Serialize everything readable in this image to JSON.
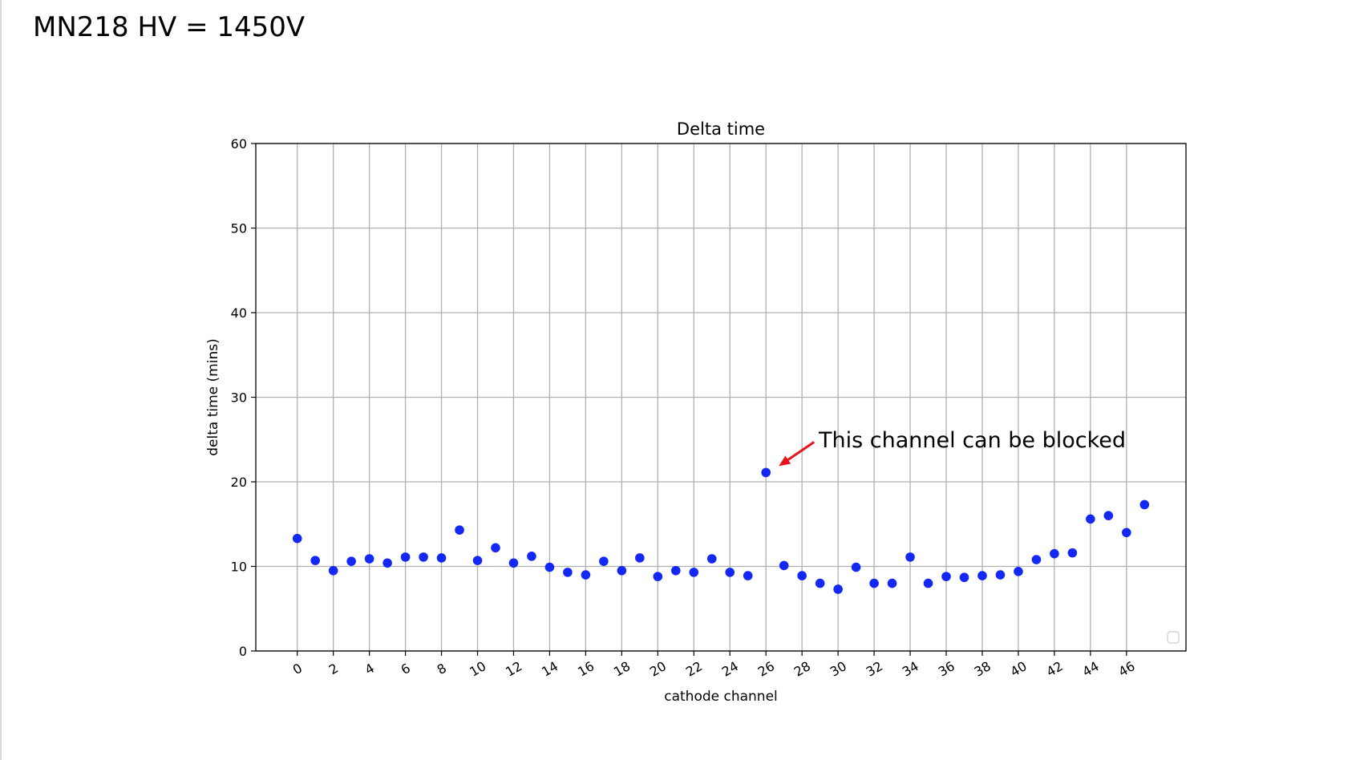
{
  "slide": {
    "title": "MN218 HV = 1450V"
  },
  "annotation": {
    "text": "This channel can be blocked",
    "arrow_color": "#e8141b",
    "points_to": {
      "x": 26,
      "y": 21.1
    }
  },
  "chart_data": {
    "type": "scatter",
    "title": "Delta time",
    "xlabel": "cathode channel",
    "ylabel": "delta time (mins)",
    "xlim": [
      -2.3,
      49.3
    ],
    "ylim": [
      0,
      60
    ],
    "xticks": [
      0,
      2,
      4,
      6,
      8,
      10,
      12,
      14,
      16,
      18,
      20,
      22,
      24,
      26,
      28,
      30,
      32,
      34,
      36,
      38,
      40,
      42,
      44,
      46
    ],
    "yticks": [
      0,
      10,
      20,
      30,
      40,
      50,
      60
    ],
    "grid": true,
    "color": "#1428f5",
    "legend": "empty, lower-right",
    "x": [
      0,
      1,
      2,
      3,
      4,
      5,
      6,
      7,
      8,
      9,
      10,
      11,
      12,
      13,
      14,
      15,
      16,
      17,
      18,
      19,
      20,
      21,
      22,
      23,
      24,
      25,
      26,
      27,
      28,
      29,
      30,
      31,
      32,
      33,
      34,
      35,
      36,
      37,
      38,
      39,
      40,
      41,
      42,
      43,
      44,
      45,
      46,
      47
    ],
    "y": [
      13.3,
      10.7,
      9.5,
      10.6,
      10.9,
      10.4,
      11.1,
      11.1,
      11.0,
      14.3,
      10.7,
      12.2,
      10.4,
      11.2,
      9.9,
      9.3,
      9.0,
      10.6,
      9.5,
      11.0,
      8.8,
      9.5,
      9.3,
      10.9,
      9.3,
      8.9,
      21.1,
      10.1,
      8.9,
      8.0,
      7.3,
      9.9,
      8.0,
      8.0,
      11.1,
      8.0,
      8.8,
      8.7,
      8.9,
      9.0,
      9.4,
      10.8,
      11.5,
      11.6,
      15.6,
      16.0,
      14.0,
      17.3
    ]
  }
}
